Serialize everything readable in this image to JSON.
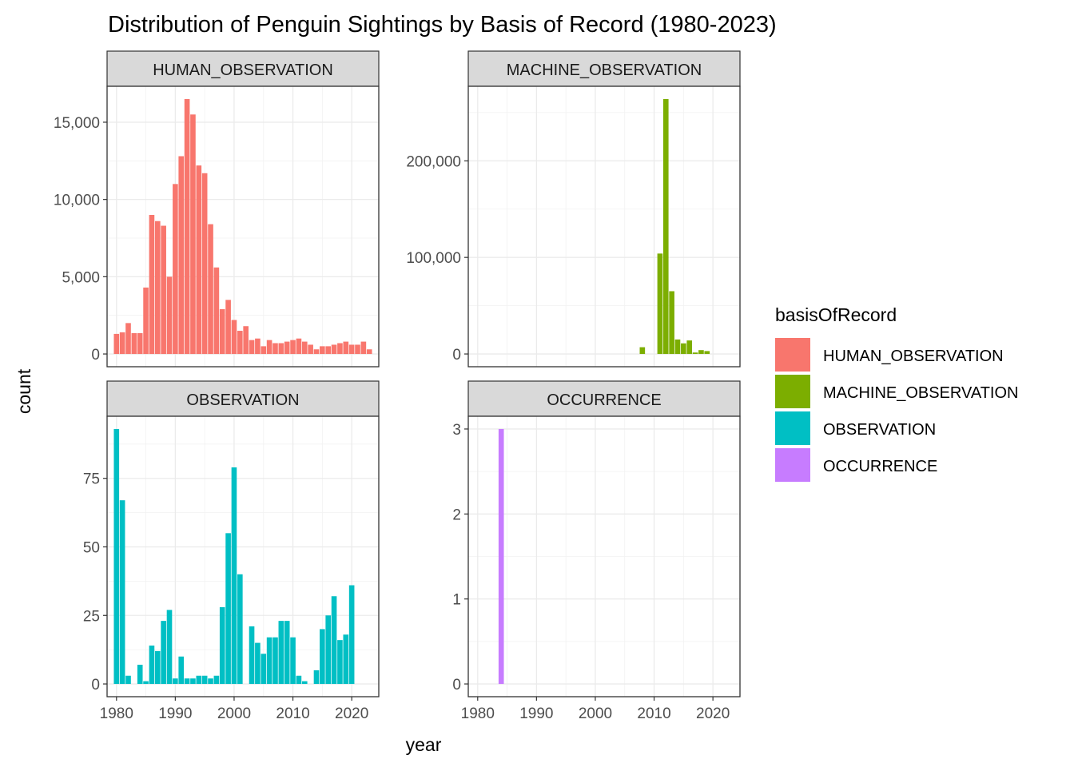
{
  "chart_data": {
    "type": "bar",
    "title": "Distribution of Penguin Sightings by Basis of Record (1980-2023)",
    "xlabel": "year",
    "ylabel": "count",
    "x_ticks": [
      1980,
      1990,
      2000,
      2010,
      2020
    ],
    "grid": true,
    "legend": {
      "title": "basisOfRecord",
      "position": "right",
      "entries": [
        {
          "label": "HUMAN_OBSERVATION",
          "color": "#F8766D"
        },
        {
          "label": "MACHINE_OBSERVATION",
          "color": "#7CAE00"
        },
        {
          "label": "OBSERVATION",
          "color": "#00BFC4"
        },
        {
          "label": "OCCURRENCE",
          "color": "#C77CFF"
        }
      ]
    },
    "panels": [
      {
        "name": "HUMAN_OBSERVATION",
        "color": "#F8766D",
        "xlim": [
          1978.4,
          2024.6
        ],
        "ylim": [
          -825,
          17325
        ],
        "y_ticks": [
          0,
          5000,
          10000,
          15000
        ],
        "y_tick_labels": [
          "0",
          "5,000",
          "10,000",
          "15,000"
        ],
        "x": [
          1980,
          1981,
          1982,
          1983,
          1984,
          1985,
          1986,
          1987,
          1988,
          1989,
          1990,
          1991,
          1992,
          1993,
          1994,
          1995,
          1996,
          1997,
          1998,
          1999,
          2000,
          2001,
          2002,
          2003,
          2004,
          2005,
          2006,
          2007,
          2008,
          2009,
          2010,
          2011,
          2012,
          2013,
          2014,
          2015,
          2016,
          2017,
          2018,
          2019,
          2020,
          2021,
          2022,
          2023
        ],
        "values": [
          1300,
          1400,
          2000,
          1350,
          1350,
          4300,
          9000,
          8600,
          8300,
          5000,
          11000,
          12800,
          16500,
          15500,
          12200,
          11700,
          8400,
          5600,
          2900,
          3500,
          2200,
          1500,
          1800,
          900,
          1000,
          500,
          900,
          700,
          700,
          800,
          900,
          1000,
          800,
          600,
          300,
          500,
          500,
          600,
          700,
          800,
          600,
          600,
          800,
          300
        ]
      },
      {
        "name": "MACHINE_OBSERVATION",
        "color": "#7CAE00",
        "xlim": [
          1978.4,
          2024.6
        ],
        "ylim": [
          -13200,
          277200
        ],
        "y_ticks": [
          0,
          100000,
          200000
        ],
        "y_tick_labels": [
          "0",
          "100,000",
          "200,000"
        ],
        "x": [
          2008,
          2011,
          2012,
          2013,
          2014,
          2015,
          2016,
          2017,
          2018,
          2019
        ],
        "values": [
          7000,
          104000,
          264000,
          65000,
          15000,
          11000,
          14000,
          1500,
          4000,
          3000
        ]
      },
      {
        "name": "OBSERVATION",
        "color": "#00BFC4",
        "xlim": [
          1978.4,
          2024.6
        ],
        "ylim": [
          -4.65,
          97.65
        ],
        "y_ticks": [
          0,
          25,
          50,
          75
        ],
        "y_tick_labels": [
          "0",
          "25",
          "50",
          "75"
        ],
        "x": [
          1980,
          1981,
          1982,
          1984,
          1985,
          1986,
          1987,
          1988,
          1989,
          1990,
          1991,
          1992,
          1993,
          1994,
          1995,
          1996,
          1997,
          1998,
          1999,
          2000,
          2001,
          2003,
          2004,
          2005,
          2006,
          2007,
          2008,
          2009,
          2010,
          2011,
          2012,
          2014,
          2015,
          2016,
          2017,
          2018,
          2019,
          2020
        ],
        "values": [
          93,
          67,
          3,
          7,
          1,
          14,
          12,
          23,
          27,
          2,
          10,
          2,
          2,
          3,
          3,
          2,
          3,
          28,
          55,
          79,
          40,
          21,
          15,
          11,
          17,
          17,
          23,
          23,
          17,
          3,
          1,
          5,
          20,
          25,
          32,
          16,
          18,
          36
        ]
      },
      {
        "name": "OCCURRENCE",
        "color": "#C77CFF",
        "xlim": [
          1978.4,
          2024.6
        ],
        "ylim": [
          -0.15,
          3.15
        ],
        "y_ticks": [
          0,
          1,
          2,
          3
        ],
        "y_tick_labels": [
          "0",
          "1",
          "2",
          "3"
        ],
        "x": [
          1984
        ],
        "values": [
          3
        ]
      }
    ]
  }
}
